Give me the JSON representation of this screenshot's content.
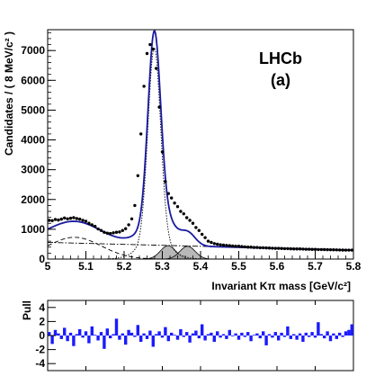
{
  "chart_data": [
    {
      "type": "line",
      "annotation_title": "LHCb",
      "annotation_label": "(a)",
      "xlabel": "Invariant Kπ mass [GeV/c²]",
      "ylabel": "Candidates / ( 8 MeV/c² )",
      "xlim": [
        5.0,
        5.8
      ],
      "ylim": [
        0,
        7700
      ],
      "x_ticks": [
        "5",
        "5.1",
        "5.2",
        "5.3",
        "5.4",
        "5.5",
        "5.6",
        "5.7",
        "5.8"
      ],
      "y_ticks": [
        "0",
        "1000",
        "2000",
        "3000",
        "4000",
        "5000",
        "6000",
        "7000"
      ],
      "colors": {
        "fit": "#1a1aa0",
        "data": "#000000",
        "components": "#000000",
        "pull": "#1a1aff"
      },
      "data_points": {
        "x": [
          5.004,
          5.012,
          5.02,
          5.028,
          5.036,
          5.044,
          5.052,
          5.06,
          5.068,
          5.076,
          5.084,
          5.092,
          5.1,
          5.108,
          5.116,
          5.124,
          5.132,
          5.14,
          5.148,
          5.156,
          5.164,
          5.172,
          5.18,
          5.188,
          5.196,
          5.204,
          5.212,
          5.22,
          5.228,
          5.236,
          5.244,
          5.252,
          5.26,
          5.268,
          5.276,
          5.284,
          5.292,
          5.3,
          5.308,
          5.316,
          5.324,
          5.332,
          5.34,
          5.348,
          5.356,
          5.364,
          5.372,
          5.38,
          5.388,
          5.396,
          5.404,
          5.412,
          5.42,
          5.428,
          5.436,
          5.444,
          5.452,
          5.46,
          5.468,
          5.476,
          5.484,
          5.492,
          5.5,
          5.508,
          5.516,
          5.524,
          5.532,
          5.54,
          5.548,
          5.556,
          5.564,
          5.572,
          5.58,
          5.588,
          5.596,
          5.604,
          5.612,
          5.62,
          5.628,
          5.636,
          5.644,
          5.652,
          5.66,
          5.668,
          5.676,
          5.684,
          5.692,
          5.7,
          5.708,
          5.716,
          5.724,
          5.732,
          5.74,
          5.748,
          5.756,
          5.764,
          5.772,
          5.78,
          5.788,
          5.796
        ],
        "y": [
          1300,
          1290,
          1330,
          1310,
          1340,
          1380,
          1350,
          1370,
          1390,
          1360,
          1340,
          1300,
          1270,
          1200,
          1150,
          1100,
          1010,
          960,
          900,
          870,
          860,
          880,
          900,
          910,
          960,
          1020,
          1150,
          1350,
          1800,
          2800,
          4200,
          5800,
          6900,
          7200,
          7050,
          6400,
          5100,
          3600,
          2600,
          2200,
          2050,
          1880,
          1760,
          1600,
          1520,
          1390,
          1300,
          1200,
          1060,
          960,
          830,
          720,
          600,
          560,
          520,
          500,
          480,
          470,
          460,
          450,
          440,
          430,
          430,
          420,
          410,
          400,
          400,
          390,
          390,
          380,
          380,
          375,
          370,
          365,
          360,
          360,
          355,
          350,
          350,
          345,
          340,
          340,
          340,
          335,
          330,
          330,
          325,
          325,
          320,
          320,
          318,
          315,
          312,
          310,
          308,
          305,
          302,
          300,
          300,
          300
        ]
      },
      "pull": {
        "ylim": [
          -5,
          5
        ],
        "y_ticks": [
          "4",
          "2",
          "0",
          "-2",
          "-4"
        ],
        "ylabel": "Pull",
        "values": [
          0.5,
          -1.2,
          0.8,
          0.3,
          -0.5,
          1.1,
          -0.8,
          0.4,
          -1.5,
          0.2,
          0.9,
          -0.3,
          0.6,
          -1.1,
          1.3,
          0.1,
          -0.7,
          0.5,
          -1.9,
          1.0,
          -0.4,
          0.2,
          2.4,
          -0.6,
          0.3,
          -1.3,
          0.8,
          0.4,
          -0.2,
          1.5,
          -0.9,
          0.3,
          -0.5,
          0.7,
          -1.6,
          0.2,
          0.6,
          -0.3,
          1.2,
          -0.8,
          0.4,
          0.1,
          -0.6,
          0.9,
          -0.2,
          0.5,
          -1.0,
          0.3,
          0.7,
          -0.4,
          1.6,
          -0.7,
          0.2,
          0.4,
          -0.9,
          0.6,
          -0.3,
          0.2,
          -0.5,
          0.8,
          -0.1,
          0.3,
          -0.6,
          0.4,
          -0.2,
          0.5,
          -0.8,
          0.1,
          0.3,
          -0.4,
          0.6,
          -1.4,
          0.2,
          -0.3,
          0.5,
          -0.7,
          0.4,
          -0.2,
          1.3,
          -0.5,
          0.2,
          -0.6,
          0.3,
          -0.9,
          0.4,
          -0.2,
          0.5,
          -0.3,
          1.9,
          0.2,
          -0.4,
          0.6,
          -0.8,
          0.3,
          -0.5,
          0.4,
          -0.2,
          0.6,
          0.8,
          1.6
        ]
      }
    }
  ]
}
